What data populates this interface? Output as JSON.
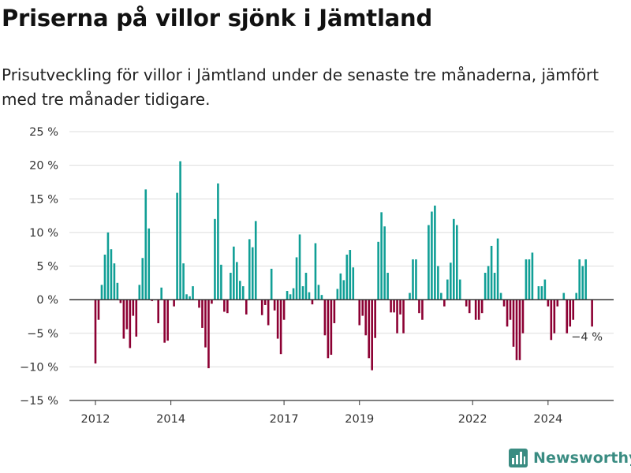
{
  "title": "Priserna på villor sjönk i Jämtland",
  "subtitle": "Prisutveckling för villor i Jämtland under de senaste tre månaderna, jämfört med tre månader tidigare.",
  "brand": "Newsworthy",
  "colors": {
    "positive": "#119f96",
    "negative": "#8c0033",
    "axis": "#333333",
    "grid": "#dddddd",
    "brand": "#3a8c82"
  },
  "chart_data": {
    "type": "bar",
    "unit": "%",
    "ylim": [
      -15,
      25
    ],
    "y_ticks": [
      25,
      20,
      15,
      10,
      5,
      0,
      -5,
      -10,
      -15
    ],
    "y_tick_labels": [
      "25 %",
      "20 %",
      "15 %",
      "10 %",
      "5 %",
      "0 %",
      "−5 %",
      "−10 %",
      "−15 %"
    ],
    "x_tick_labels": [
      {
        "label": "2012",
        "x": "2012-01"
      },
      {
        "label": "2014",
        "x": "2014-01"
      },
      {
        "label": "2017",
        "x": "2017-01"
      },
      {
        "label": "2019",
        "x": "2019-01"
      },
      {
        "label": "2022",
        "x": "2022-01"
      },
      {
        "label": "2024",
        "x": "2024-01"
      }
    ],
    "start": "2012-01",
    "annotation": {
      "label": "−4 %",
      "x": "2024-12",
      "value": -4
    },
    "values": [
      -9.5,
      -3,
      2.2,
      6.7,
      10,
      7.5,
      5.4,
      2.5,
      -0.5,
      -5.8,
      -4.4,
      -7.2,
      -2.4,
      -5.5,
      2.2,
      6.2,
      16.4,
      10.6,
      -0.2,
      0,
      -3.5,
      1.8,
      -6.4,
      -6.1,
      0,
      -1,
      15.9,
      20.6,
      5.4,
      0.8,
      0.5,
      2,
      0,
      -1.2,
      -4.2,
      -7.1,
      -10.2,
      -0.6,
      12,
      17.3,
      5.2,
      -1.8,
      -2,
      4,
      7.9,
      5.6,
      2.8,
      2,
      -2.2,
      9,
      7.8,
      11.7,
      0,
      -2.3,
      -0.8,
      -3.8,
      4.6,
      -1.6,
      -5.8,
      -8.1,
      -3,
      1.3,
      0.8,
      1.7,
      6.3,
      9.7,
      2,
      4,
      1.1,
      -0.7,
      8.4,
      2.2,
      0.7,
      -5.3,
      -8.7,
      -8.2,
      -3.5,
      1.6,
      3.9,
      2.9,
      6.7,
      7.4,
      4.8,
      0,
      -3.8,
      -2.4,
      -5.3,
      -8.7,
      -10.5,
      -5.7,
      8.6,
      13,
      10.9,
      4,
      -1.9,
      -1.9,
      -5,
      -2.2,
      -5,
      0,
      1,
      6,
      6,
      -2,
      -3,
      0,
      11.1,
      13.1,
      14,
      5,
      1,
      -1,
      3,
      5.5,
      12,
      11.1,
      3,
      0,
      -1,
      -2,
      0,
      -3,
      -3,
      -2,
      4,
      5,
      8,
      4,
      9.1,
      1,
      -1,
      -4,
      -3,
      -7,
      -9,
      -9,
      -5,
      6,
      6,
      7,
      0,
      2,
      2,
      3,
      -1,
      -6,
      -5,
      -1,
      0,
      1,
      -5,
      -4,
      -3,
      1,
      6,
      5,
      6,
      0,
      -4
    ]
  }
}
